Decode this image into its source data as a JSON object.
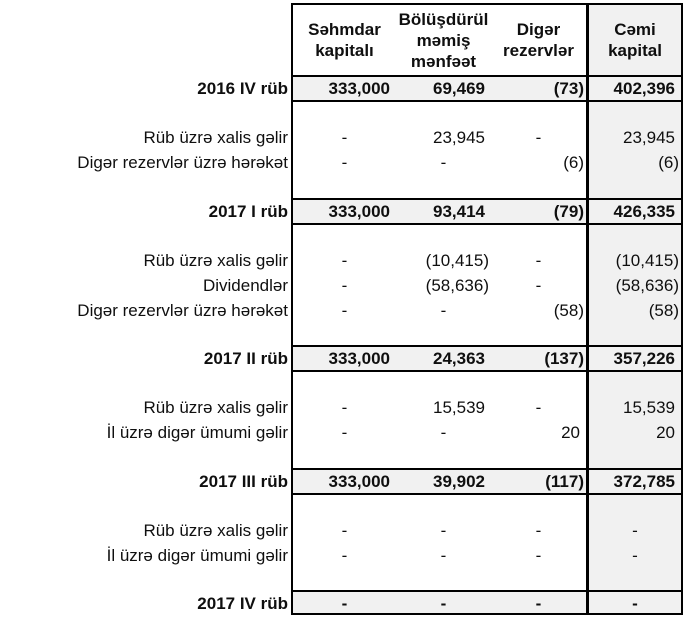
{
  "table": {
    "title": "equity-changes-statement",
    "header": {
      "columns": [
        {
          "name": "Səhmdar kapitalı",
          "lines": [
            "Səhmdar",
            "kapitalı"
          ]
        },
        {
          "name": "Bölüşdürülməmiş mənfəət",
          "lines": [
            "Bölüşdürül",
            "məmiş",
            "mənfəət"
          ]
        },
        {
          "name": "Digər rezervlər",
          "lines": [
            "Digər",
            "rezervlər"
          ]
        },
        {
          "name": "Cəmi kapital",
          "lines": [
            "Cəmi",
            "kapital"
          ]
        }
      ]
    },
    "bands": [
      {
        "type": "total",
        "label": "2016 IV rüb",
        "values": [
          "333,000",
          "69,469",
          "(73)",
          "402,396"
        ]
      },
      {
        "type": "section",
        "rows": [
          {
            "label": "Rüb üzrə xalis gəlir",
            "values": [
              "-",
              "23,945",
              "-",
              "23,945"
            ]
          },
          {
            "label": "Digər rezervlər üzrə hərəkət",
            "values": [
              "-",
              "-",
              "(6)",
              "(6)"
            ]
          }
        ]
      },
      {
        "type": "total",
        "label": "2017 I rüb",
        "values": [
          "333,000",
          "93,414",
          "(79)",
          "426,335"
        ]
      },
      {
        "type": "section",
        "rows": [
          {
            "label": "Rüb üzrə xalis gəlir",
            "values": [
              "-",
              "(10,415)",
              "-",
              "(10,415)"
            ]
          },
          {
            "label": "Dividendlər",
            "values": [
              "-",
              "(58,636)",
              "-",
              "(58,636)"
            ]
          },
          {
            "label": "Digər rezervlər üzrə hərəkət",
            "values": [
              "-",
              "-",
              "(58)",
              "(58)"
            ]
          }
        ]
      },
      {
        "type": "total",
        "label": "2017 II rüb",
        "values": [
          "333,000",
          "24,363",
          "(137)",
          "357,226"
        ]
      },
      {
        "type": "section",
        "rows": [
          {
            "label": "Rüb üzrə xalis gəlir",
            "values": [
              "-",
              "15,539",
              "-",
              "15,539"
            ]
          },
          {
            "label": "İl üzrə digər ümumi gəlir",
            "values": [
              "-",
              "-",
              "20",
              "20"
            ]
          }
        ]
      },
      {
        "type": "total",
        "label": "2017 III rüb",
        "values": [
          "333,000",
          "39,902",
          "(117)",
          "372,785"
        ]
      },
      {
        "type": "section",
        "rows": [
          {
            "label": "Rüb üzrə xalis gəlir",
            "values": [
              "-",
              "-",
              "-",
              "-"
            ]
          },
          {
            "label": "İl üzrə digər ümumi gəlir",
            "values": [
              "-",
              "-",
              "-",
              "-"
            ]
          }
        ]
      },
      {
        "type": "total",
        "label": "2017 IV rüb",
        "values": [
          "-",
          "-",
          "-",
          "-"
        ]
      }
    ],
    "colors": {
      "band_fill": "#f1f1f1",
      "border": "#000000",
      "text": "#0f0f0f",
      "background": "#ffffff"
    }
  }
}
